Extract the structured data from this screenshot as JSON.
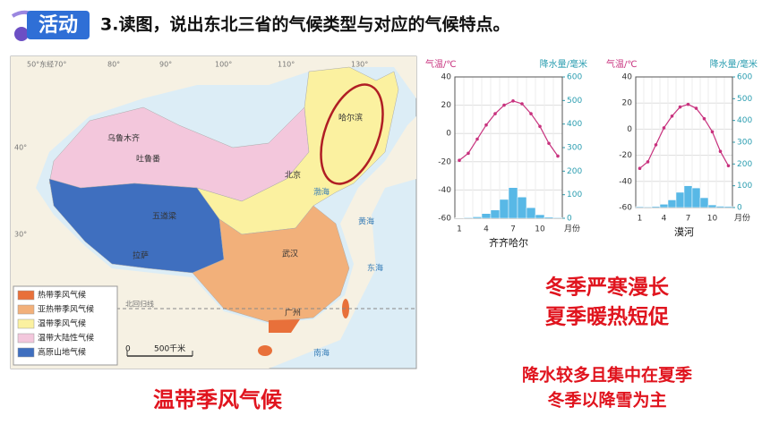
{
  "header": {
    "badge": "活动",
    "title": "3.读图，说出东北三省的气候类型与对应的气候特点。"
  },
  "map": {
    "coords": [
      "50°东经70°",
      "80°",
      "90°",
      "100°",
      "110°",
      "130°",
      "40°",
      "30°"
    ],
    "cities": [
      "乌鲁木齐",
      "吐鲁番",
      "五道梁",
      "拉萨",
      "北京",
      "武汉",
      "广州",
      "哈尔滨"
    ],
    "seas": [
      "渤海",
      "黄海",
      "东海",
      "南海"
    ],
    "line_label": "北回归线",
    "legend": [
      {
        "label": "热带季风气候",
        "color": "#e8703a"
      },
      {
        "label": "亚热带季风气候",
        "color": "#f2b07a"
      },
      {
        "label": "温带季风气候",
        "color": "#fbf1a0"
      },
      {
        "label": "温带大陆性气候",
        "color": "#f3c7dc"
      },
      {
        "label": "高原山地气候",
        "color": "#3f6fbf"
      }
    ],
    "scale": {
      "zero": "0",
      "label": "500千米"
    }
  },
  "chart_data": [
    {
      "type": "combo",
      "title": "齐齐哈尔",
      "ylabel": "气温/℃",
      "y2label": "降水量/毫米",
      "xlabel": "月份",
      "categories": [
        1,
        null,
        null,
        4,
        null,
        null,
        7,
        null,
        null,
        10,
        null,
        null
      ],
      "ylim": [
        -60,
        40
      ],
      "yticks": [
        -60,
        -40,
        -20,
        0,
        20,
        40
      ],
      "y2lim": [
        0,
        600
      ],
      "y2ticks": [
        0,
        100,
        200,
        300,
        400,
        500,
        600
      ],
      "series": [
        {
          "color": "#c8327e",
          "values": [
            -19,
            -14,
            -4,
            6,
            14,
            20,
            23,
            21,
            14,
            5,
            -7,
            -16
          ]
        },
        {
          "color": "#58b8e6",
          "axis": "y2",
          "values": [
            2,
            3,
            6,
            20,
            35,
            80,
            130,
            90,
            45,
            15,
            5,
            3
          ]
        }
      ]
    },
    {
      "type": "combo",
      "title": "漠河",
      "ylabel": "气温/℃",
      "y2label": "降水量/毫米",
      "xlabel": "月份",
      "categories": [
        1,
        null,
        null,
        4,
        null,
        null,
        7,
        null,
        null,
        10,
        null,
        null
      ],
      "ylim": [
        -60,
        40
      ],
      "yticks": [
        -60,
        -40,
        -20,
        0,
        20,
        40
      ],
      "y2lim": [
        0,
        600
      ],
      "y2ticks": [
        0,
        100,
        200,
        300,
        400,
        500,
        600
      ],
      "series": [
        {
          "color": "#c8327e",
          "values": [
            -30,
            -25,
            -12,
            1,
            10,
            17,
            19,
            16,
            8,
            -2,
            -17,
            -28
          ]
        },
        {
          "color": "#58b8e6",
          "axis": "y2",
          "values": [
            4,
            3,
            5,
            15,
            35,
            70,
            100,
            90,
            45,
            12,
            6,
            5
          ]
        }
      ]
    }
  ],
  "answer": {
    "climate": "温带季风气候",
    "features": [
      "冬季严寒漫长",
      "夏季暖热短促",
      "降水较多且集中在夏季",
      "冬季以降雪为主"
    ]
  }
}
